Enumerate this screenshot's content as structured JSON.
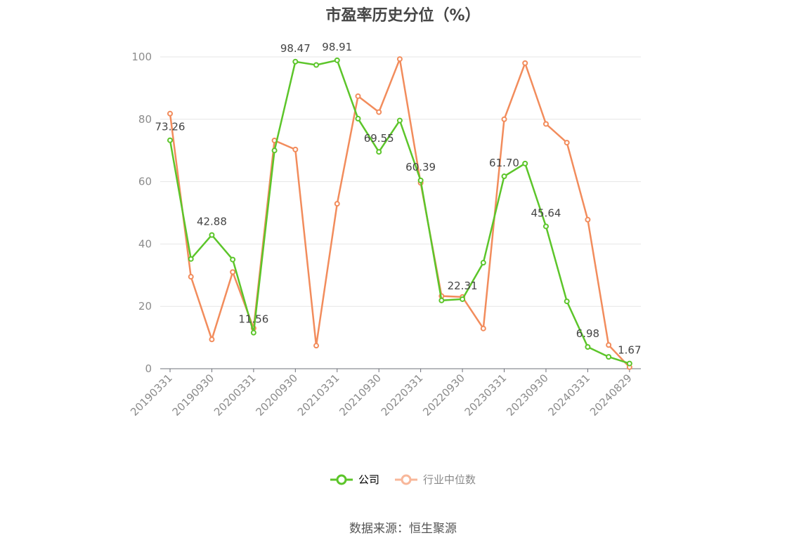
{
  "title": "市盈率历史分位（%）",
  "source_note": "数据来源：恒生聚源",
  "chart_data": {
    "type": "line",
    "title": "市盈率历史分位（%）",
    "x": [
      "20190331",
      "20190630",
      "20190930",
      "20191231",
      "20200331",
      "20200630",
      "20200930",
      "20201231",
      "20210331",
      "20210630",
      "20210930",
      "20211231",
      "20220331",
      "20220630",
      "20220930",
      "20221231",
      "20230331",
      "20230630",
      "20230930",
      "20231231",
      "20240331",
      "20240630",
      "20240829"
    ],
    "x_tick_labels": [
      "20190331",
      "20190930",
      "20200331",
      "20200930",
      "20210331",
      "20210930",
      "20220331",
      "20220930",
      "20230331",
      "20230930",
      "20240331",
      "20240829"
    ],
    "ylim": [
      0,
      100
    ],
    "y_ticks": [
      0,
      20,
      40,
      60,
      80,
      100
    ],
    "grid": true,
    "legend_position": "bottom",
    "series": [
      {
        "name": "公司",
        "color": "#5cc52a",
        "values": [
          73.26,
          35.2,
          42.88,
          35.0,
          11.56,
          70.0,
          98.47,
          97.4,
          98.91,
          80.2,
          69.55,
          79.6,
          60.39,
          21.9,
          22.31,
          34.0,
          61.7,
          65.8,
          45.64,
          21.6,
          6.98,
          3.8,
          1.67
        ],
        "value_labels": {
          "0": "73.26",
          "2": "42.88",
          "4": "11.56",
          "6": "98.47",
          "8": "98.91",
          "10": "69.55",
          "12": "60.39",
          "14": "22.31",
          "16": "61.70",
          "18": "45.64",
          "20": "6.98",
          "22": "1.67"
        }
      },
      {
        "name": "行业中位数",
        "color": "#f28c5c",
        "values": [
          81.8,
          29.5,
          9.4,
          31.0,
          13.0,
          73.2,
          70.3,
          7.4,
          52.9,
          87.4,
          82.3,
          99.3,
          59.6,
          23.3,
          23.0,
          12.9,
          80.0,
          98.0,
          78.5,
          72.5,
          47.8,
          7.6,
          0.5
        ]
      }
    ],
    "legend": [
      {
        "name": "公司",
        "icon": "circle-line-icon",
        "color": "#5cc52a"
      },
      {
        "name": "行业中位数",
        "icon": "circle-line-icon",
        "color": "#f8b79a"
      }
    ]
  }
}
